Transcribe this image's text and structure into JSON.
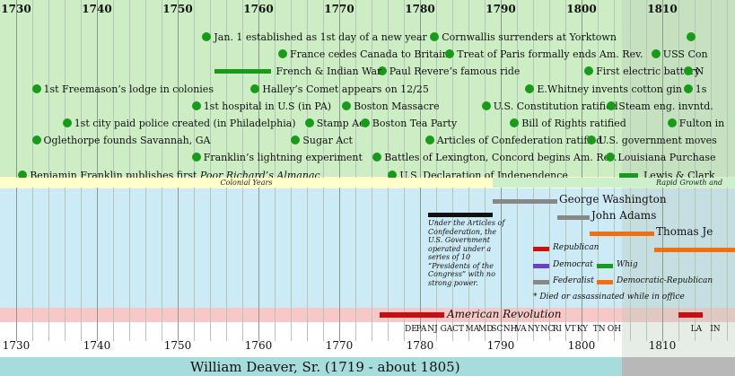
{
  "timeline": {
    "start_year": 1728,
    "end_year": 1819,
    "tick_years": [
      "1730",
      "1740",
      "1750",
      "1760",
      "1770",
      "1780",
      "1790",
      "1800",
      "1810"
    ],
    "highlight_from_year": 1805,
    "colors": {
      "events_band": "#cdeec4",
      "era_band": "#ffffcc",
      "pres_band": "#cdeaf7",
      "war_band": "#f8c8c8",
      "event_dot": "#1a9a1a",
      "war_bar": "#c41010",
      "federalist": "#888888",
      "democratic_republican": "#f07010",
      "republican": "#cc1010",
      "democrat": "#6a3fcc",
      "whig": "#1a9a1a",
      "highlight": "#b8c8b8"
    }
  },
  "events": [
    {
      "year": 1753.6,
      "row": 0,
      "label": "Jan. 1 established as 1st day of a new year"
    },
    {
      "year": 1781.8,
      "row": 0,
      "label": "Cornwallis surrenders at Yorktown"
    },
    {
      "year": 1813.5,
      "row": 0,
      "label": ""
    },
    {
      "year": 1763,
      "row": 1,
      "label": "France cedes Canada to Britain"
    },
    {
      "year": 1783.7,
      "row": 1,
      "label": "Treat of Paris formally ends Am. Rev."
    },
    {
      "year": 1809.2,
      "row": 1,
      "label": "USS Con"
    },
    {
      "year": 1775.3,
      "row": 2,
      "label": "Paul Revere’s famous ride"
    },
    {
      "year": 1800.9,
      "row": 2,
      "label": "First electric battery"
    },
    {
      "year": 1813.2,
      "row": 2,
      "label": "N"
    },
    {
      "year": 1732.5,
      "row": 3,
      "label": "1st Freemason’s lodge in colonies"
    },
    {
      "year": 1759.6,
      "row": 3,
      "label": "Halley’s Comet appears on 12/25"
    },
    {
      "year": 1793.6,
      "row": 3,
      "label": "E.Whitney invents cotton gin"
    },
    {
      "year": 1813.2,
      "row": 3,
      "label": "1s"
    },
    {
      "year": 1752.3,
      "row": 4,
      "label": "1st hospital in U.S (in PA)"
    },
    {
      "year": 1770.9,
      "row": 4,
      "label": "Boston Massacre"
    },
    {
      "year": 1788.2,
      "row": 4,
      "label": "U.S. Constitution ratified"
    },
    {
      "year": 1803.7,
      "row": 4,
      "label": "Steam eng. invntd."
    },
    {
      "year": 1736.3,
      "row": 5,
      "label": "1st city paid police created (in Philadelphia)"
    },
    {
      "year": 1766.3,
      "row": 5,
      "label": "Stamp Act"
    },
    {
      "year": 1773.2,
      "row": 5,
      "label": "Boston Tea Party"
    },
    {
      "year": 1791.7,
      "row": 5,
      "label": "Bill of Rights ratified"
    },
    {
      "year": 1811.2,
      "row": 5,
      "label": "Fulton in"
    },
    {
      "year": 1732.5,
      "row": 6,
      "label": "Oglethorpe founds Savannah, GA"
    },
    {
      "year": 1764.6,
      "row": 6,
      "label": "Sugar Act"
    },
    {
      "year": 1781.2,
      "row": 6,
      "label": "Articles of Confederation ratified"
    },
    {
      "year": 1801.2,
      "row": 6,
      "label": "U.S. government moves"
    },
    {
      "year": 1752.3,
      "row": 7,
      "label": "Franklin’s lightning experiment"
    },
    {
      "year": 1774.7,
      "row": 7,
      "label": "Battles of Lexington, Concord begins Am. Rev."
    },
    {
      "year": 1803.6,
      "row": 7,
      "label": "Louisiana Purchase"
    },
    {
      "year": 1730.8,
      "row": 8,
      "label": "Benjamin Franklin publishes first ",
      "italic": "Poor Richard’s Almanac"
    },
    {
      "year": 1776.6,
      "row": 8,
      "label": "U.S. Declaration of Independence"
    }
  ],
  "event_bars": [
    {
      "label": "French & Indian War",
      "start": 1754.5,
      "end": 1761.5,
      "row": 2
    },
    {
      "label": "Lewis & Clark",
      "start": 1804.7,
      "end": 1807,
      "row": 8
    }
  ],
  "eras": [
    {
      "label": "Colonial Years",
      "start": 1728,
      "end": 1789,
      "color": "#ffffcc"
    },
    {
      "label": "Rapid Growth and",
      "start": 1789,
      "end": 1819,
      "color": "#ccf0cc"
    }
  ],
  "presidents": [
    {
      "name": "George Washington",
      "start": 1789,
      "end": 1797,
      "row": 0,
      "party": "federalist"
    },
    {
      "name": "John Adams",
      "start": 1797,
      "end": 1801,
      "row": 1,
      "party": "federalist"
    },
    {
      "name": "Thomas Je",
      "start": 1801,
      "end": 1809,
      "row": 2,
      "party": "democratic_republican"
    },
    {
      "name": "",
      "start": 1809,
      "end": 1819,
      "row": 3,
      "party": "democratic_republican"
    }
  ],
  "articles_note": {
    "start": 1781,
    "end": 1789,
    "text": "Under the Articles of Confederation, the U.S. Government operated under a series of 10 “Presidents of the Congress” with no strong power."
  },
  "legend": {
    "items": [
      {
        "label": "Republican",
        "party": "republican"
      },
      {
        "label": "Democrat",
        "party": "democrat"
      },
      {
        "label": "Whig",
        "party": "whig"
      },
      {
        "label": "Federalist",
        "party": "federalist"
      },
      {
        "label": "Democratic-Republican",
        "party": "democratic_republican"
      }
    ],
    "footnote": "* Died or assassinated while in office"
  },
  "wars": [
    {
      "name": "American Revolution",
      "start": 1775,
      "end": 1783
    },
    {
      "name": "",
      "start": 1812,
      "end": 1815
    }
  ],
  "states": [
    {
      "abbr": "DE",
      "year": 1787.0
    },
    {
      "abbr": "PA",
      "year": 1788.4
    },
    {
      "abbr": "NJ",
      "year": 1789.8
    },
    {
      "abbr": "GA",
      "year": 1791.4
    },
    {
      "abbr": "CT",
      "year": 1792.9
    },
    {
      "abbr": "MA",
      "year": 1794.5
    },
    {
      "abbr": "MD",
      "year": 1796.1
    },
    {
      "abbr": "SC",
      "year": 1797.7
    },
    {
      "abbr": "NH",
      "year": 1799.2
    },
    {
      "abbr": "VA",
      "year": 1800.7
    },
    {
      "abbr": "NY",
      "year": 1802.2
    },
    {
      "abbr": "NC",
      "year": 1803.8
    },
    {
      "abbr": "RI",
      "year": 1805.3
    },
    {
      "abbr": "VT",
      "year": 1806.8
    },
    {
      "abbr": "KY",
      "year": 1808.3
    },
    {
      "abbr": "TN",
      "year": 1810.3
    },
    {
      "abbr": "OH",
      "year": 1812.1
    },
    {
      "abbr": "LA",
      "year": 1822.4
    },
    {
      "abbr": "IN",
      "year": 1824.8
    }
  ],
  "person": {
    "name": "William Deaver, Sr.  (1719 - about 1805)"
  }
}
